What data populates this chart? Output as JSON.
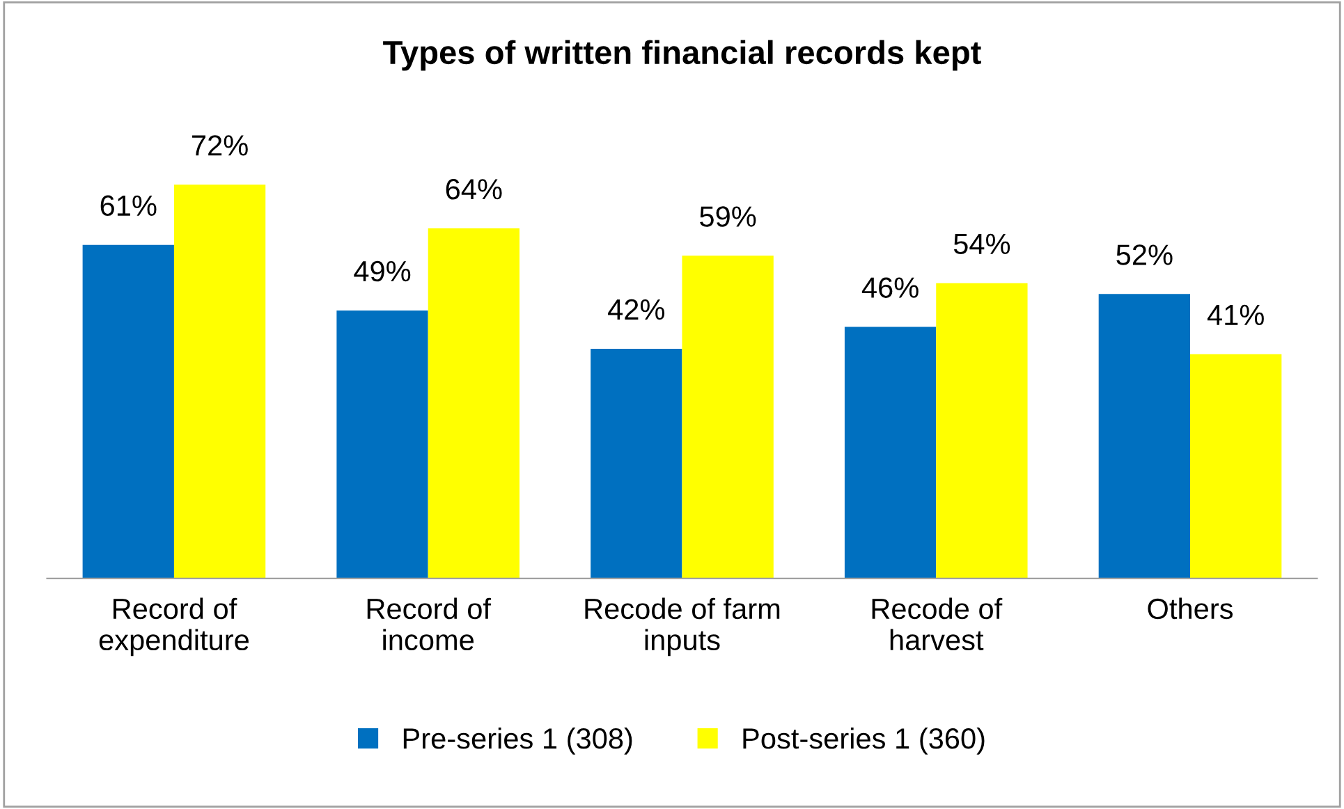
{
  "chart_data": {
    "type": "bar",
    "title": "Types of written financial records kept",
    "categories": [
      "Record of\nexpenditure",
      "Record of\nincome",
      "Recode of farm\ninputs",
      "Recode of\nharvest",
      "Others"
    ],
    "series": [
      {
        "name": "Pre-series 1 (308)",
        "color": "#0070c0",
        "values": [
          61,
          49,
          42,
          46,
          52
        ],
        "value_labels": [
          "61%",
          "49%",
          "42%",
          "46%",
          "52%"
        ]
      },
      {
        "name": "Post-series 1 (360)",
        "color": "#ffff00",
        "values": [
          72,
          64,
          59,
          54,
          41
        ],
        "value_labels": [
          "72%",
          "64%",
          "59%",
          "54%",
          "41%"
        ]
      }
    ],
    "legend": "bottom"
  }
}
